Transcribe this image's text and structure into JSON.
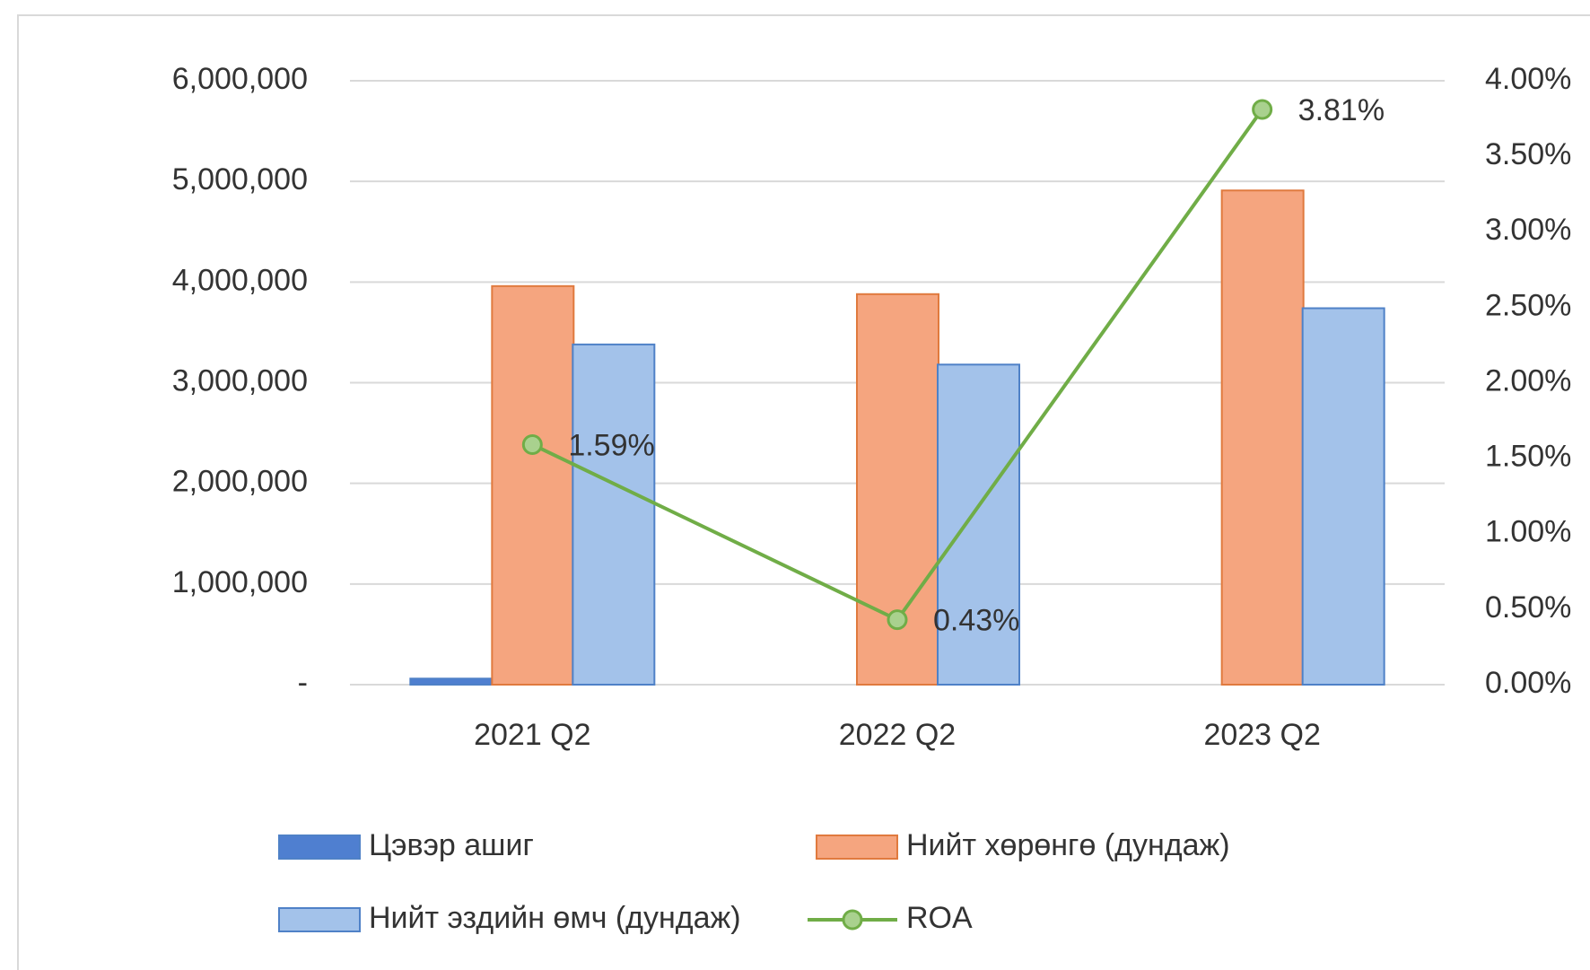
{
  "chart_data": {
    "type": "bar_line",
    "categories": [
      "2021 Q2",
      "2022 Q2",
      "2023 Q2"
    ],
    "series": [
      {
        "name": "Цэвэр ашиг",
        "color": "#4f7fd0",
        "values": [
          60000,
          0,
          0
        ]
      },
      {
        "name": "Нийт хөрөнгө (дундаж)",
        "color": "#f5a57f",
        "values": [
          3960000,
          3880000,
          4910000
        ]
      },
      {
        "name": "Нийт эздийн өмч (дундаж)",
        "color": "#a3c2ea",
        "values": [
          3380000,
          3180000,
          3740000
        ]
      },
      {
        "name": "ROA",
        "color": "#70ad47",
        "axis": "y2",
        "values": [
          1.59,
          0.43,
          3.81
        ],
        "value_labels": [
          "1.59%",
          "0.43%",
          "3.81%"
        ]
      }
    ],
    "ylim": [
      0,
      6000000
    ],
    "yticks": [
      {
        "value": 0,
        "label": "-"
      },
      {
        "value": 1000000,
        "label": "1,000,000"
      },
      {
        "value": 2000000,
        "label": "2,000,000"
      },
      {
        "value": 3000000,
        "label": "3,000,000"
      },
      {
        "value": 4000000,
        "label": "4,000,000"
      },
      {
        "value": 5000000,
        "label": "5,000,000"
      },
      {
        "value": 6000000,
        "label": "6,000,000"
      }
    ],
    "y2lim": [
      0,
      4
    ],
    "y2ticks": [
      {
        "value": 0,
        "label": "0.00%"
      },
      {
        "value": 0.5,
        "label": "0.50%"
      },
      {
        "value": 1,
        "label": "1.00%"
      },
      {
        "value": 1.5,
        "label": "1.50%"
      },
      {
        "value": 2,
        "label": "2.00%"
      },
      {
        "value": 2.5,
        "label": "2.50%"
      },
      {
        "value": 3,
        "label": "3.00%"
      },
      {
        "value": 3.5,
        "label": "3.50%"
      },
      {
        "value": 4,
        "label": "4.00%"
      }
    ],
    "grid": true
  }
}
